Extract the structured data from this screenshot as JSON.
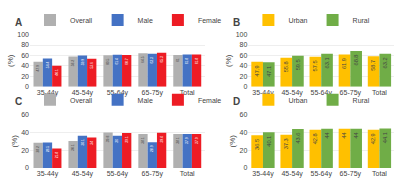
{
  "chart_data": [
    {
      "type": "bar",
      "title": "A",
      "ylabel": "(%)",
      "categories": [
        "35-44y",
        "45-54y",
        "55-64y",
        "65-75y",
        "Total"
      ],
      "series": [
        {
          "name": "Overall",
          "color": "#b0b0b0",
          "values": [
            47.9,
            58.2,
            60.5,
            64.5,
            61.0
          ]
        },
        {
          "name": "Male",
          "color": "#4472c4",
          "values": [
            54.4,
            59.9,
            61.4,
            63.3,
            61.8
          ]
        },
        {
          "name": "Female",
          "color": "#ed1c24",
          "values": [
            40.1,
            53.6,
            60.7,
            65.3,
            61.8
          ]
        }
      ],
      "ylim": [
        0,
        100
      ],
      "yticks": [
        0,
        20,
        40,
        60,
        80,
        100
      ],
      "grid": true,
      "data_labels": true,
      "legend": "upper left"
    },
    {
      "type": "bar",
      "title": "B",
      "ylabel": "(%)",
      "categories": [
        "35-44y",
        "45-54y",
        "55-64y",
        "65-75y",
        "Total"
      ],
      "series": [
        {
          "name": "Urban",
          "color": "#ffc000",
          "values": [
            47.9,
            55.8,
            57.5,
            61.9,
            58.7
          ]
        },
        {
          "name": "Rural",
          "color": "#70ad47",
          "values": [
            47.1,
            59.5,
            63.1,
            68.8,
            63.2
          ]
        }
      ],
      "ylim": [
        0,
        100
      ],
      "yticks": [
        0,
        20,
        40,
        60,
        80,
        100
      ],
      "grid": true,
      "data_labels": true,
      "legend": "upper left"
    },
    {
      "type": "bar",
      "title": "C",
      "ylabel": "(%)",
      "categories": [
        "35-44y",
        "45-54y",
        "55-64y",
        "65-75y",
        "Total"
      ],
      "series": [
        {
          "name": "Overall",
          "color": "#b0b0b0",
          "values": [
            28.2,
            30.1,
            39.8,
            38.1,
            38.1
          ]
        },
        {
          "name": "Male",
          "color": "#4472c4",
          "values": [
            28.5,
            36.1,
            36.0,
            28.9,
            37.9
          ]
        },
        {
          "name": "Female",
          "color": "#ed1c24",
          "values": [
            21.8,
            34.0,
            39.1,
            39.4,
            37.9
          ]
        }
      ],
      "ylim": [
        0,
        60
      ],
      "yticks": [
        0,
        20,
        40,
        60
      ],
      "grid": true,
      "data_labels": true,
      "legend": "upper left"
    },
    {
      "type": "bar",
      "title": "D",
      "ylabel": "(%)",
      "categories": [
        "35-44y",
        "45-54y",
        "55-64y",
        "65-75y",
        "Total"
      ],
      "series": [
        {
          "name": "Urban",
          "color": "#ffc000",
          "values": [
            36.5,
            37.3,
            42.8,
            44.0,
            42.9
          ]
        },
        {
          "name": "Rural",
          "color": "#70ad47",
          "values": [
            40.1,
            43.6,
            44.0,
            44.0,
            44.1
          ]
        }
      ],
      "ylim": [
        0,
        60
      ],
      "yticks": [
        0,
        20,
        40,
        60
      ],
      "grid": true,
      "data_labels": true,
      "legend": "upper left"
    }
  ]
}
